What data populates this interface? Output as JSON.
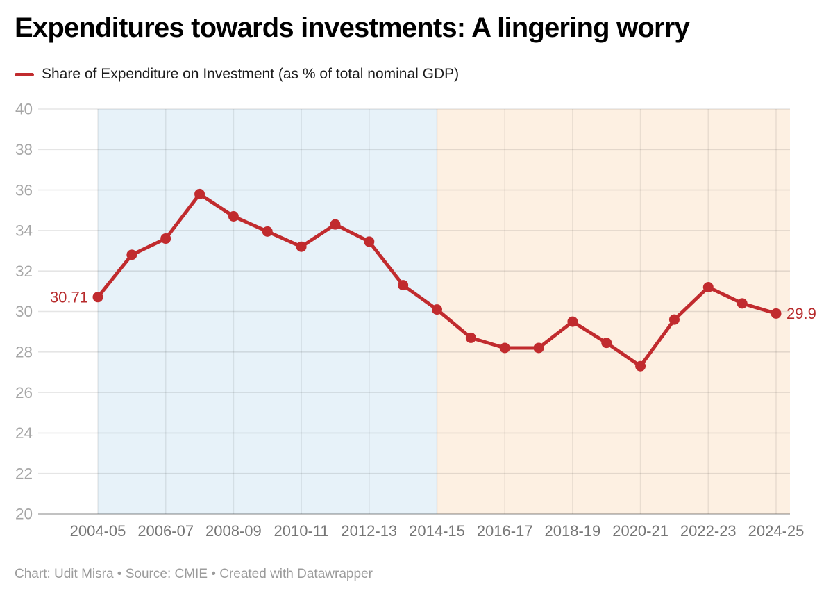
{
  "header": {
    "title": "Expenditures towards investments: A lingering worry"
  },
  "legend": {
    "label": "Share of Expenditure on Investment (as % of total nominal GDP)"
  },
  "footer": {
    "text": "Chart: Udit Misra • Source: CMIE • Created with Datawrapper"
  },
  "chart_data": {
    "type": "line",
    "title": "Expenditures towards investments: A lingering worry",
    "categories": [
      "2004-05",
      "2005-06",
      "2006-07",
      "2007-08",
      "2008-09",
      "2009-10",
      "2010-11",
      "2011-12",
      "2012-13",
      "2013-14",
      "2014-15",
      "2015-16",
      "2016-17",
      "2017-18",
      "2018-19",
      "2019-20",
      "2020-21",
      "2021-22",
      "2022-23",
      "2023-24",
      "2024-25"
    ],
    "series": [
      {
        "name": "Share of Expenditure on Investment (as % of total nominal GDP)",
        "values": [
          30.71,
          32.8,
          33.6,
          35.8,
          34.7,
          33.95,
          33.2,
          34.3,
          33.45,
          31.3,
          30.1,
          28.7,
          28.2,
          28.2,
          29.5,
          28.45,
          27.3,
          29.6,
          31.2,
          30.4,
          29.9
        ]
      }
    ],
    "x_tick_labels": [
      "2004-05",
      "2006-07",
      "2008-09",
      "2010-11",
      "2012-13",
      "2014-15",
      "2016-17",
      "2018-19",
      "2020-21",
      "2022-23",
      "2024-25"
    ],
    "y_ticks": [
      40,
      38,
      36,
      34,
      32,
      30,
      28,
      26,
      24,
      22,
      20
    ],
    "ylim": [
      20,
      40
    ],
    "xlabel": "",
    "ylabel": "",
    "grid": true,
    "legend_position": "top-left",
    "point_labels": {
      "first": "30.71",
      "last": "29.9"
    },
    "shaded_regions": [
      {
        "label": "2004-05 to 2014-15",
        "from_category": "2004-05",
        "to_category": "2014-15",
        "color": "#e7f2f9"
      },
      {
        "label": "2014-15 to 2024-25",
        "from_category": "2014-15",
        "to_category": "2024-25",
        "color": "#fdf0e2"
      }
    ],
    "colors": {
      "line": "#c12b2e",
      "value_labels": "#b72a2b",
      "y_tick_text": "#a6a6a6",
      "x_tick_text": "#767676"
    }
  }
}
